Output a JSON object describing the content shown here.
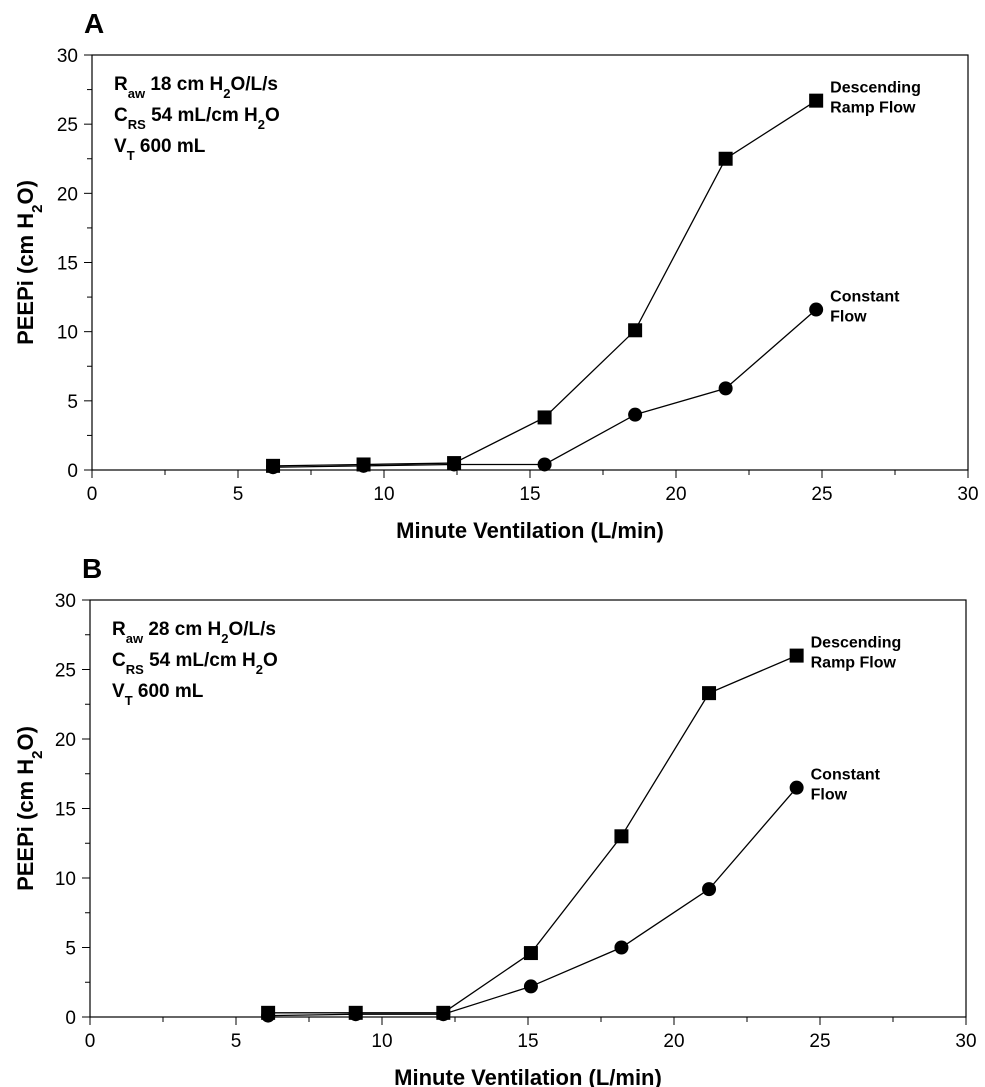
{
  "chart_data": [
    {
      "type": "line",
      "panel_label": "A",
      "x_label": "Minute Ventilation (L/min)",
      "y_label": {
        "parts": [
          {
            "text": "PEEPi (cm H"
          },
          {
            "text": "2",
            "sub": true
          },
          {
            "text": "O)"
          }
        ]
      },
      "annotation": [
        {
          "parts": [
            {
              "text": "R"
            },
            {
              "text": "aw",
              "sub": true
            },
            {
              "text": " 18 cm H"
            },
            {
              "text": "2",
              "sub": true
            },
            {
              "text": "O/L/s"
            }
          ]
        },
        {
          "parts": [
            {
              "text": "C"
            },
            {
              "text": "RS",
              "sub": true
            },
            {
              "text": " 54 mL/cm H"
            },
            {
              "text": "2",
              "sub": true
            },
            {
              "text": "O"
            }
          ]
        },
        {
          "parts": [
            {
              "text": "V"
            },
            {
              "text": "T",
              "sub": true
            },
            {
              "text": " 600 mL"
            }
          ]
        }
      ],
      "x": [
        6.2,
        9.3,
        12.4,
        15.5,
        18.6,
        21.7,
        24.8
      ],
      "series": [
        {
          "name": "Descending Ramp Flow",
          "color": "#000000",
          "marker": "square",
          "values": [
            0.3,
            0.4,
            0.5,
            3.8,
            10.1,
            22.5,
            26.7
          ]
        },
        {
          "name": "Constant Flow",
          "color": "#000000",
          "marker": "circle",
          "values": [
            0.2,
            0.3,
            0.4,
            0.4,
            4.0,
            5.9,
            11.6
          ]
        }
      ],
      "xlim": [
        0,
        30
      ],
      "xticks": [
        0,
        5,
        10,
        15,
        20,
        25,
        30
      ],
      "xminor": [
        2.5,
        7.5,
        12.5,
        17.5,
        22.5,
        27.5
      ],
      "ylim": [
        0,
        30
      ],
      "yticks": [
        0,
        5,
        10,
        15,
        20,
        25,
        30
      ],
      "yminor": [
        2.5,
        7.5,
        12.5,
        17.5,
        22.5,
        27.5
      ],
      "grid": false
    },
    {
      "type": "line",
      "panel_label": "B",
      "x_label": "Minute Ventilation (L/min)",
      "y_label": {
        "parts": [
          {
            "text": "PEEPi (cm H"
          },
          {
            "text": "2",
            "sub": true
          },
          {
            "text": "O)"
          }
        ]
      },
      "annotation": [
        {
          "parts": [
            {
              "text": "R"
            },
            {
              "text": "aw",
              "sub": true
            },
            {
              "text": " 28 cm H"
            },
            {
              "text": "2",
              "sub": true
            },
            {
              "text": "O/L/s"
            }
          ]
        },
        {
          "parts": [
            {
              "text": "C"
            },
            {
              "text": "RS",
              "sub": true
            },
            {
              "text": " 54 mL/cm H"
            },
            {
              "text": "2",
              "sub": true
            },
            {
              "text": "O"
            }
          ]
        },
        {
          "parts": [
            {
              "text": "V"
            },
            {
              "text": "T",
              "sub": true
            },
            {
              "text": " 600 mL"
            }
          ]
        }
      ],
      "x": [
        6.1,
        9.1,
        12.1,
        15.1,
        18.2,
        21.2,
        24.2
      ],
      "series": [
        {
          "name": "Descending Ramp Flow",
          "color": "#000000",
          "marker": "square",
          "values": [
            0.3,
            0.3,
            0.3,
            4.6,
            13.0,
            23.3,
            26.0
          ]
        },
        {
          "name": "Constant Flow",
          "color": "#000000",
          "marker": "circle",
          "values": [
            0.1,
            0.2,
            0.2,
            2.2,
            5.0,
            9.2,
            16.5
          ]
        }
      ],
      "xlim": [
        0,
        30
      ],
      "xticks": [
        0,
        5,
        10,
        15,
        20,
        25,
        30
      ],
      "xminor": [
        2.5,
        7.5,
        12.5,
        17.5,
        22.5,
        27.5
      ],
      "ylim": [
        0,
        30
      ],
      "yticks": [
        0,
        5,
        10,
        15,
        20,
        25,
        30
      ],
      "yminor": [
        2.5,
        7.5,
        12.5,
        17.5,
        22.5,
        27.5
      ],
      "grid": false
    }
  ]
}
